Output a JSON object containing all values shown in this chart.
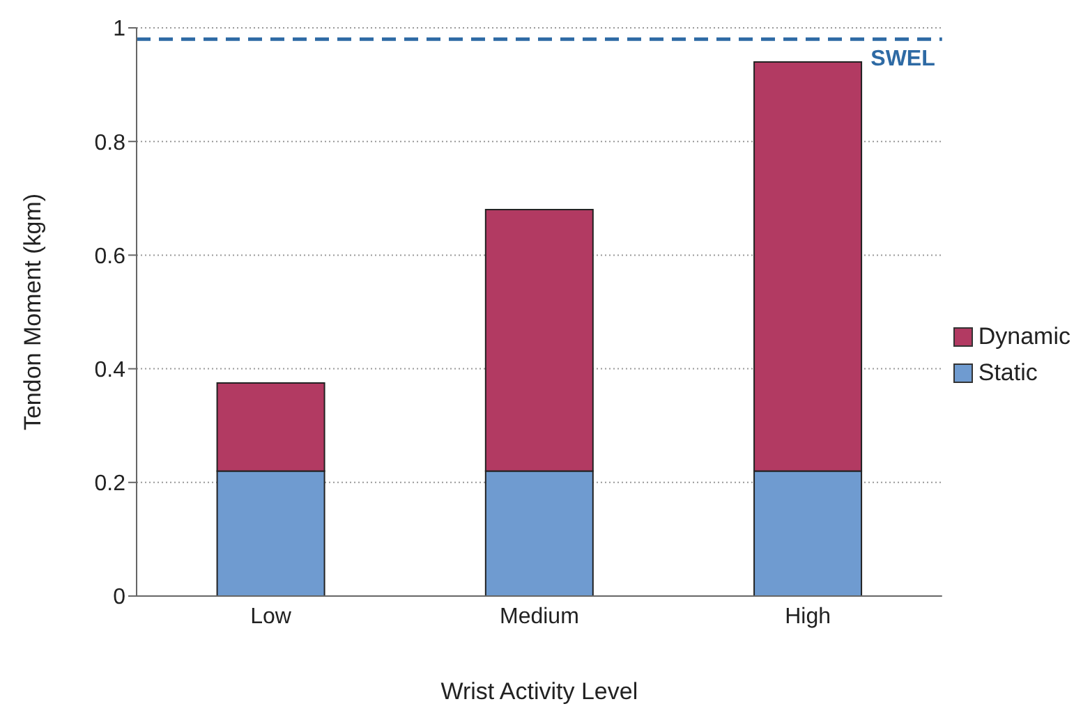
{
  "chart_data": {
    "type": "bar",
    "stacked": true,
    "xlabel": "Wrist Activity Level",
    "ylabel": "Tendon Moment (kgm)",
    "categories": [
      "Low",
      "Medium",
      "High"
    ],
    "series": [
      {
        "name": "Static",
        "color": "#6f9bd0",
        "values": [
          0.22,
          0.22,
          0.22
        ]
      },
      {
        "name": "Dynamic",
        "color": "#b23a62",
        "values": [
          0.155,
          0.46,
          0.72
        ]
      }
    ],
    "ylim": [
      0,
      1
    ],
    "yticks": [
      0,
      0.2,
      0.4,
      0.6,
      0.8,
      1
    ],
    "grid": "y",
    "legend": "right",
    "ref_lines": [
      {
        "axis": "y",
        "value": 0.98,
        "label": "SWEL",
        "color": "#2e6aa4",
        "line_style": "dashed"
      }
    ]
  }
}
